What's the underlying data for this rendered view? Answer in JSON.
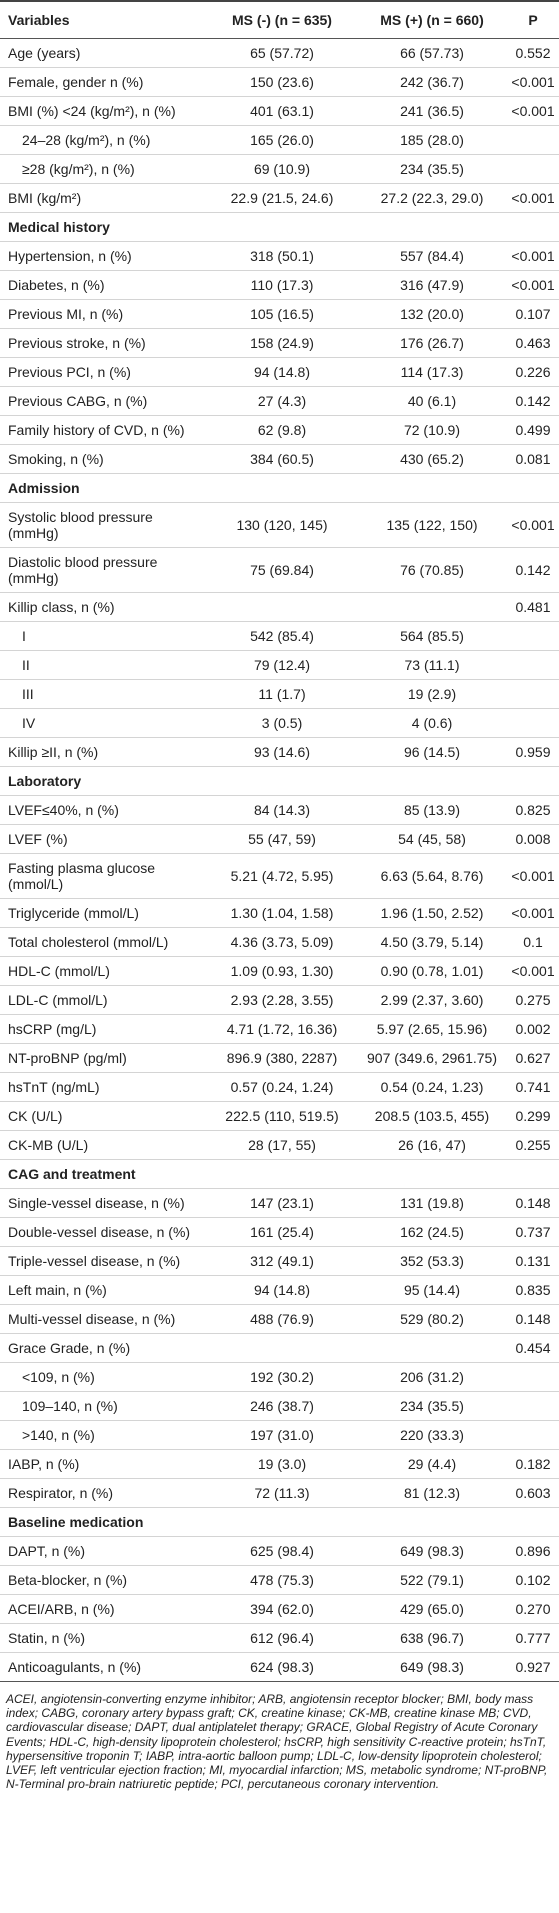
{
  "table": {
    "header": [
      "Variables",
      "MS (-) (n = 635)",
      "MS (+) (n = 660)",
      "P"
    ],
    "groups": [
      {
        "rows": [
          {
            "cells": [
              "Age (years)",
              "65 (57.72)",
              "66 (57.73)",
              "0.552"
            ]
          },
          {
            "cells": [
              "Female, gender n (%)",
              "150 (23.6)",
              "242 (36.7)",
              "<0.001"
            ]
          },
          {
            "cells": [
              "BMI (%) <24 (kg/m²), n (%)",
              "401 (63.1)",
              "241 (36.5)",
              "<0.001"
            ],
            "subrows": [
              {
                "cells": [
                  "24–28 (kg/m²), n (%)",
                  "165 (26.0)",
                  "185 (28.0)",
                  null
                ]
              },
              {
                "cells": [
                  "≥28 (kg/m²), n (%)",
                  "69 (10.9)",
                  "234 (35.5)",
                  null
                ]
              }
            ]
          },
          {
            "cells": [
              "BMI (kg/m²)",
              "22.9 (21.5, 24.6)",
              "27.2 (22.3, 29.0)",
              "<0.001"
            ]
          }
        ]
      },
      {
        "title": "Medical history",
        "rows": [
          {
            "cells": [
              "Hypertension, n (%)",
              "318 (50.1)",
              "557 (84.4)",
              "<0.001"
            ]
          },
          {
            "cells": [
              "Diabetes, n (%)",
              "110 (17.3)",
              "316 (47.9)",
              "<0.001"
            ]
          },
          {
            "cells": [
              "Previous MI, n (%)",
              "105 (16.5)",
              "132 (20.0)",
              "0.107"
            ]
          },
          {
            "cells": [
              "Previous stroke, n (%)",
              "158 (24.9)",
              "176 (26.7)",
              "0.463"
            ]
          },
          {
            "cells": [
              "Previous PCI, n (%)",
              "94 (14.8)",
              "114 (17.3)",
              "0.226"
            ]
          },
          {
            "cells": [
              "Previous CABG, n (%)",
              "27 (4.3)",
              "40 (6.1)",
              "0.142"
            ]
          },
          {
            "cells": [
              "Family history of CVD, n (%)",
              "62 (9.8)",
              "72 (10.9)",
              "0.499"
            ]
          },
          {
            "cells": [
              "Smoking, n (%)",
              "384 (60.5)",
              "430 (65.2)",
              "0.081"
            ]
          }
        ]
      },
      {
        "title": "Admission",
        "rows": [
          {
            "cells": [
              "Systolic blood pressure (mmHg)",
              "130 (120, 145)",
              "135 (122, 150)",
              "<0.001"
            ]
          },
          {
            "cells": [
              "Diastolic blood pressure (mmHg)",
              "75 (69.84)",
              "76 (70.85)",
              "0.142"
            ]
          },
          {
            "cells": [
              "Killip class, n (%)",
              null,
              null,
              "0.481"
            ],
            "subrows": [
              {
                "cells": [
                  "I",
                  "542 (85.4)",
                  "564 (85.5)",
                  null
                ]
              },
              {
                "cells": [
                  "II",
                  "79 (12.4)",
                  "73 (11.1)",
                  null
                ]
              },
              {
                "cells": [
                  "III",
                  "11 (1.7)",
                  "19 (2.9)",
                  null
                ]
              },
              {
                "cells": [
                  "IV",
                  "3 (0.5)",
                  "4 (0.6)",
                  null
                ]
              }
            ]
          },
          {
            "cells": [
              "Killip ≥II, n (%)",
              "93 (14.6)",
              "96 (14.5)",
              "0.959"
            ]
          }
        ]
      },
      {
        "title": "Laboratory",
        "rows": [
          {
            "cells": [
              "LVEF≤40%, n (%)",
              "84 (14.3)",
              "85 (13.9)",
              "0.825"
            ]
          },
          {
            "cells": [
              "LVEF (%)",
              "55 (47, 59)",
              "54 (45, 58)",
              "0.008"
            ]
          },
          {
            "cells": [
              "Fasting plasma glucose (mmol/L)",
              "5.21 (4.72, 5.95)",
              "6.63 (5.64, 8.76)",
              "<0.001"
            ]
          },
          {
            "cells": [
              "Triglyceride (mmol/L)",
              "1.30 (1.04, 1.58)",
              "1.96 (1.50, 2.52)",
              "<0.001"
            ]
          },
          {
            "cells": [
              "Total cholesterol (mmol/L)",
              "4.36 (3.73, 5.09)",
              "4.50 (3.79, 5.14)",
              "0.1"
            ]
          },
          {
            "cells": [
              "HDL-C (mmol/L)",
              "1.09 (0.93, 1.30)",
              "0.90 (0.78, 1.01)",
              "<0.001"
            ]
          },
          {
            "cells": [
              "LDL-C (mmol/L)",
              "2.93 (2.28, 3.55)",
              "2.99 (2.37, 3.60)",
              "0.275"
            ]
          },
          {
            "cells": [
              "hsCRP (mg/L)",
              "4.71 (1.72, 16.36)",
              "5.97 (2.65, 15.96)",
              "0.002"
            ]
          },
          {
            "cells": [
              "NT-proBNP (pg/ml)",
              "896.9 (380, 2287)",
              "907 (349.6, 2961.75)",
              "0.627"
            ]
          },
          {
            "cells": [
              "hsTnT (ng/mL)",
              "0.57 (0.24, 1.24)",
              "0.54 (0.24, 1.23)",
              "0.741"
            ]
          },
          {
            "cells": [
              "CK (U/L)",
              "222.5 (110, 519.5)",
              "208.5 (103.5, 455)",
              "0.299"
            ]
          },
          {
            "cells": [
              "CK-MB (U/L)",
              "28 (17, 55)",
              "26 (16, 47)",
              "0.255"
            ]
          }
        ]
      },
      {
        "title": "CAG and treatment",
        "rows": [
          {
            "cells": [
              "Single-vessel disease, n (%)",
              "147 (23.1)",
              "131 (19.8)",
              "0.148"
            ]
          },
          {
            "cells": [
              "Double-vessel disease, n (%)",
              "161 (25.4)",
              "162 (24.5)",
              "0.737"
            ]
          },
          {
            "cells": [
              "Triple-vessel disease, n (%)",
              "312 (49.1)",
              "352 (53.3)",
              "0.131"
            ]
          },
          {
            "cells": [
              "Left main, n (%)",
              "94 (14.8)",
              "95 (14.4)",
              "0.835"
            ]
          },
          {
            "cells": [
              "Multi-vessel disease, n (%)",
              "488 (76.9)",
              "529 (80.2)",
              "0.148"
            ]
          },
          {
            "cells": [
              "Grace Grade, n (%)",
              null,
              null,
              "0.454"
            ],
            "subrows": [
              {
                "cells": [
                  "<109, n (%)",
                  "192 (30.2)",
                  "206 (31.2)",
                  null
                ]
              },
              {
                "cells": [
                  "109–140, n (%)",
                  "246 (38.7)",
                  "234 (35.5)",
                  null
                ]
              },
              {
                "cells": [
                  ">140, n (%)",
                  "197 (31.0)",
                  "220 (33.3)",
                  null
                ]
              }
            ]
          },
          {
            "cells": [
              "IABP, n (%)",
              "19 (3.0)",
              "29 (4.4)",
              "0.182"
            ]
          },
          {
            "cells": [
              "Respirator, n (%)",
              "72 (11.3)",
              "81 (12.3)",
              "0.603"
            ]
          }
        ]
      },
      {
        "title": "Baseline medication",
        "rows": [
          {
            "cells": [
              "DAPT, n (%)",
              "625 (98.4)",
              "649 (98.3)",
              "0.896"
            ]
          },
          {
            "cells": [
              "Beta-blocker, n (%)",
              "478 (75.3)",
              "522 (79.1)",
              "0.102"
            ]
          },
          {
            "cells": [
              "ACEI/ARB, n (%)",
              "394 (62.0)",
              "429 (65.0)",
              "0.270"
            ]
          },
          {
            "cells": [
              "Statin, n (%)",
              "612 (96.4)",
              "638 (96.7)",
              "0.777"
            ]
          },
          {
            "cells": [
              "Anticoagulants, n (%)",
              "624 (98.3)",
              "649 (98.3)",
              "0.927"
            ]
          }
        ]
      }
    ],
    "footnote": "ACEI, angiotensin-converting enzyme inhibitor; ARB, angiotensin receptor blocker; BMI, body mass index; CABG, coronary artery bypass graft; CK, creatine kinase; CK-MB, creatine kinase MB; CVD, cardiovascular disease; DAPT, dual antiplatelet therapy; GRACE, Global Registry of Acute Coronary Events; HDL-C, high-density lipoprotein cholesterol; hsCRP, high sensitivity C-reactive protein; hsTnT, hypersensitive troponin T; IABP, intra-aortic balloon pump; LDL-C, low-density lipoprotein cholesterol; LVEF, left ventricular ejection fraction; MI, myocardial infarction; MS, metabolic syndrome; NT-proBNP, N-Terminal pro-brain natriuretic peptide; PCI, percutaneous coronary intervention."
  }
}
